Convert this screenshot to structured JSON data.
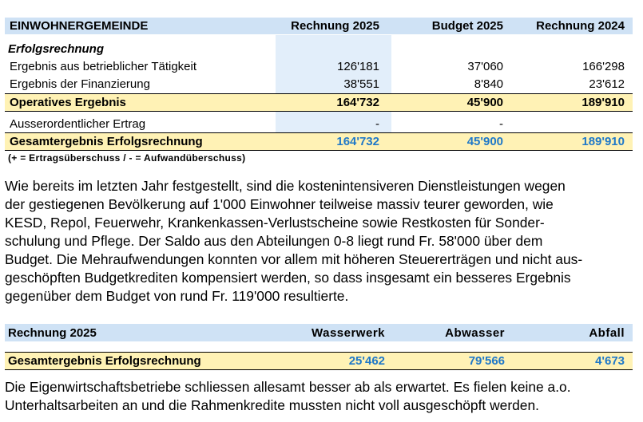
{
  "table1": {
    "header": [
      "EINWOHNERGEMEINDE",
      "Rechnung 2025",
      "Budget 2025",
      "Rechnung 2024"
    ],
    "section": "Erfolgsrechnung",
    "rows": [
      [
        "Ergebnis aus betrieblicher Tätigkeit",
        "126'181",
        "37'060",
        "166'298"
      ],
      [
        "Ergebnis der Finanzierung",
        "38'551",
        "8'840",
        "23'612"
      ],
      [
        "Operatives Ergebnis",
        "164'732",
        "45'900",
        "189'910"
      ],
      [
        "Ausserordentlicher Ertrag",
        "-",
        "-",
        null
      ],
      [
        "Gesamtergebnis Erfolgsrechnung",
        "164'732",
        "45'900",
        "189'910"
      ]
    ],
    "footnote": "(+ = Ertragsüberschuss / - = Aufwandüberschuss)"
  },
  "paragraph1": [
    "Wie bereits im letzten Jahr festgestellt, sind die kostenintensiveren Dienstleistungen wegen",
    "der gestiegenen Bevölkerung auf 1'000 Einwohner teilweise massiv teurer geworden, wie",
    "KESD, Repol, Feuerwehr, Krankenkassen-Verlustscheine sowie Restkosten für Sonder-",
    "schulung und Pflege. Der Saldo aus den Abteilungen 0-8 liegt rund Fr. 58'000 über dem",
    "Budget. Die Mehraufwendungen konnten vor allem mit höheren Steuererträgen und nicht aus-",
    "geschöpften Budgetkrediten kompensiert werden, so dass insgesamt ein besseres Ergebnis",
    "gegenüber dem Budget von rund Fr. 119'000 resultierte."
  ],
  "table2": {
    "header": [
      "Rechnung 2025",
      "Wasserwerk",
      "Abwasser",
      "Abfall"
    ],
    "rows": [
      [
        "Gesamtergebnis Erfolgsrechnung",
        "25'462",
        "79'566",
        "4'673"
      ]
    ]
  },
  "paragraph2": [
    "Die Eigenwirtschaftsbetriebe schliessen allesamt besser ab als erwartet. Es fielen keine a.o.",
    "Unterhaltsarbeiten an und die Rahmenkredite mussten nicht voll ausgeschöpft werden."
  ]
}
